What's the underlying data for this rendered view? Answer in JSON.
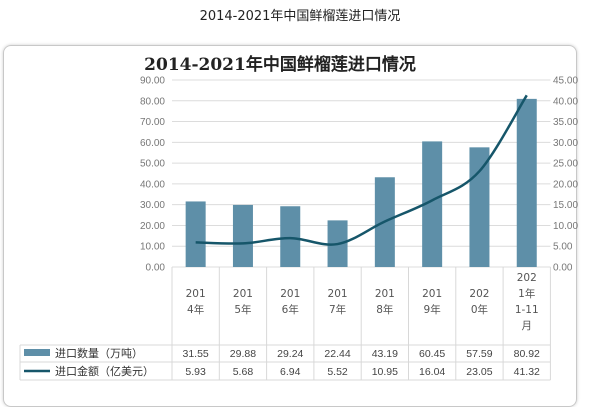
{
  "page_title": "2014-2021年中国鲜榴莲进口情况",
  "colors": {
    "bar": "#5e8fa8",
    "line": "#16566a",
    "grid": "#dcdcdc"
  },
  "chart_data": {
    "type": "bar+line",
    "title": "2014-2021年中国鲜榴莲进口情况",
    "categories": [
      "2014年",
      "2015年",
      "2016年",
      "2017年",
      "2018年",
      "2019年",
      "2020年",
      "2021年1-11月"
    ],
    "category_lines": [
      [
        "201",
        "4年"
      ],
      [
        "201",
        "5年"
      ],
      [
        "201",
        "6年"
      ],
      [
        "201",
        "7年"
      ],
      [
        "201",
        "8年"
      ],
      [
        "201",
        "9年"
      ],
      [
        "202",
        "0年"
      ],
      [
        "202",
        "1年",
        "1-11",
        "月"
      ]
    ],
    "series": [
      {
        "name": "进口数量（万吨）",
        "type": "bar",
        "axis": "left",
        "values": [
          31.55,
          29.88,
          29.24,
          22.44,
          43.19,
          60.45,
          57.59,
          80.92
        ],
        "labels": [
          "31.55",
          "29.88",
          "29.24",
          "22.44",
          "43.19",
          "60.45",
          "57.59",
          "80.92"
        ]
      },
      {
        "name": "进口金额（亿美元）",
        "type": "line",
        "axis": "right",
        "values": [
          5.93,
          5.68,
          6.94,
          5.52,
          10.95,
          16.04,
          23.05,
          41.32
        ],
        "labels": [
          "5.93",
          "5.68",
          "6.94",
          "5.52",
          "10.95",
          "16.04",
          "23.05",
          "41.32"
        ]
      }
    ],
    "ylim_left": [
      0,
      90
    ],
    "ylim_right": [
      0,
      45
    ],
    "yticks_left": [
      "0.00",
      "10.00",
      "20.00",
      "30.00",
      "40.00",
      "50.00",
      "60.00",
      "70.00",
      "80.00",
      "90.00"
    ],
    "yticks_right": [
      "0.00",
      "5.00",
      "10.00",
      "15.00",
      "20.00",
      "25.00",
      "30.00",
      "35.00",
      "40.00",
      "45.00"
    ],
    "grid": true,
    "legend": "data-table-bottom"
  }
}
